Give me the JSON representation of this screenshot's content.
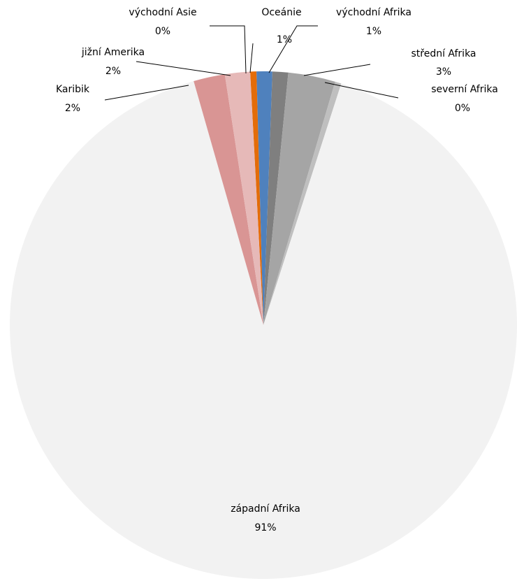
{
  "chart_data": {
    "type": "pie",
    "categories": [
      "východní Asie",
      "Oceánie",
      "východní Afrika",
      "střední Afrika",
      "severní Afrika",
      "západní Afrika",
      "Karibik",
      "jižní Amerika"
    ],
    "values": [
      0.4,
      1.0,
      1.0,
      3.0,
      0.4,
      90.6,
      2.0,
      1.6
    ],
    "value_labels": [
      "0%",
      "1%",
      "1%",
      "3%",
      "0%",
      "91%",
      "2%",
      "2%"
    ],
    "colors": [
      "#e36c09",
      "#4f81bd",
      "#7f7f7f",
      "#a5a5a5",
      "#bfbfbf",
      "#f2f2f2",
      "#d99594",
      "#e6b9b8"
    ]
  }
}
